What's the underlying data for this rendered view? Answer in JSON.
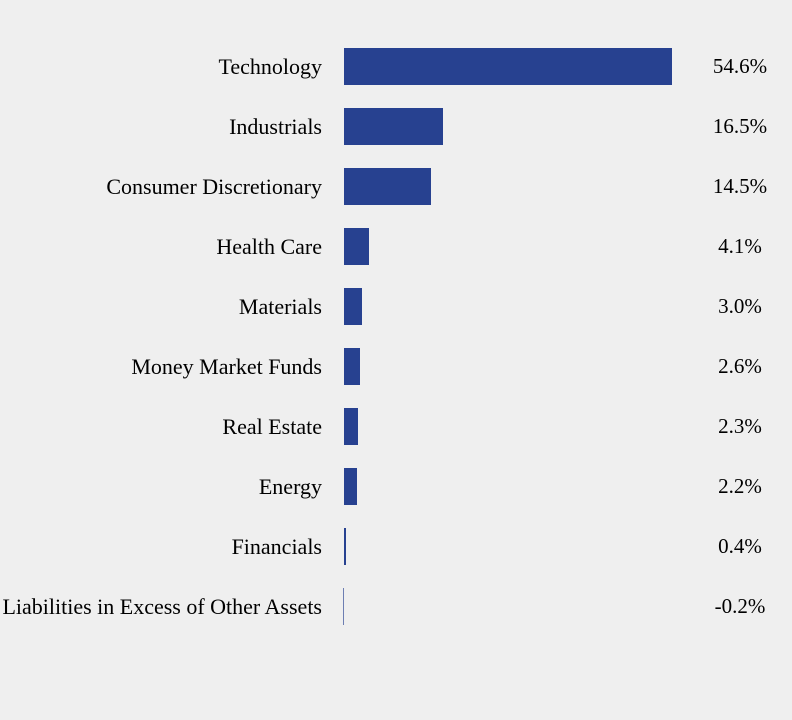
{
  "page": {
    "background_color": "#efefef",
    "text_color": "#000000"
  },
  "chart_data": {
    "type": "bar",
    "orientation": "horizontal",
    "title": "",
    "xlabel": "",
    "ylabel": "",
    "xlim": [
      0,
      57
    ],
    "grid": false,
    "legend": false,
    "bar_color": "#274190",
    "categories": [
      "Technology",
      "Industrials",
      "Consumer Discretionary",
      "Health Care",
      "Materials",
      "Money Market Funds",
      "Real Estate",
      "Energy",
      "Financials",
      "Liabilities in Excess of Other Assets"
    ],
    "values": [
      54.6,
      16.5,
      14.5,
      4.1,
      3.0,
      2.6,
      2.3,
      2.2,
      0.4,
      -0.2
    ],
    "value_labels": [
      "54.6%",
      "16.5%",
      "14.5%",
      "4.1%",
      "3.0%",
      "2.6%",
      "2.3%",
      "2.2%",
      "0.4%",
      "-0.2%"
    ]
  }
}
